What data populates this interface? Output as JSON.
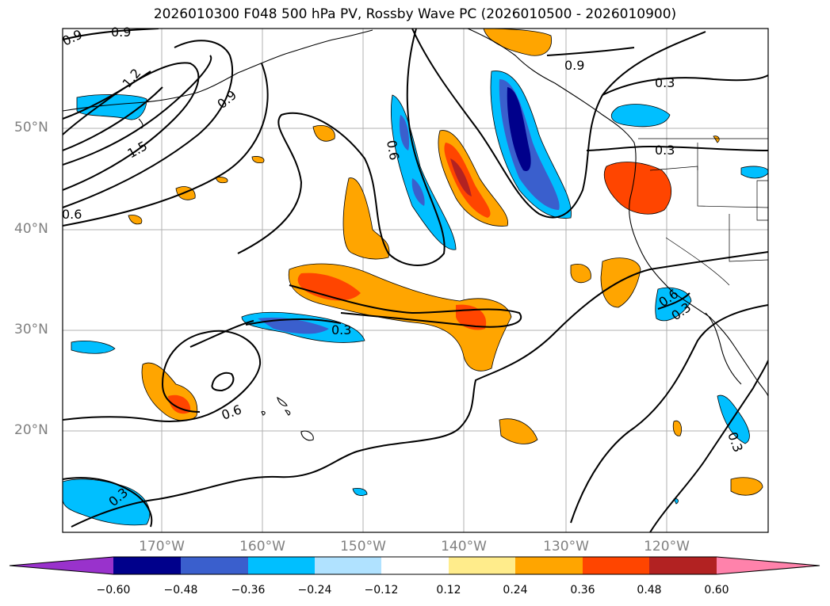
{
  "title": "2026010300 F048 500 hPa PV, Rossby Wave PC (2026010500 - 2026010900)",
  "axes": {
    "lat_labels": [
      "50°N",
      "40°N",
      "30°N",
      "20°N"
    ],
    "lon_labels": [
      "170°W",
      "160°W",
      "150°W",
      "140°W",
      "130°W",
      "120°W"
    ]
  },
  "contour_labels": [
    "0.9",
    "0.9",
    "1.2",
    "0.9",
    "1.5",
    "0.6",
    "0.6",
    "0.9",
    "0.3",
    "0.3",
    "0.3",
    "0.6",
    "0.6",
    "0.3",
    "0.3",
    "0.3"
  ],
  "colorbar": {
    "ticks": [
      "−0.60",
      "−0.48",
      "−0.36",
      "−0.24",
      "−0.12",
      "0.12",
      "0.24",
      "0.36",
      "0.48",
      "0.60"
    ],
    "colors": [
      "#9932cc",
      "#00008b",
      "#3a5fcd",
      "#00bfff",
      "#b0e2ff",
      "#ffffff",
      "#ffec8b",
      "#ffa500",
      "#ff4500",
      "#b22222",
      "#ff82ab"
    ]
  }
}
